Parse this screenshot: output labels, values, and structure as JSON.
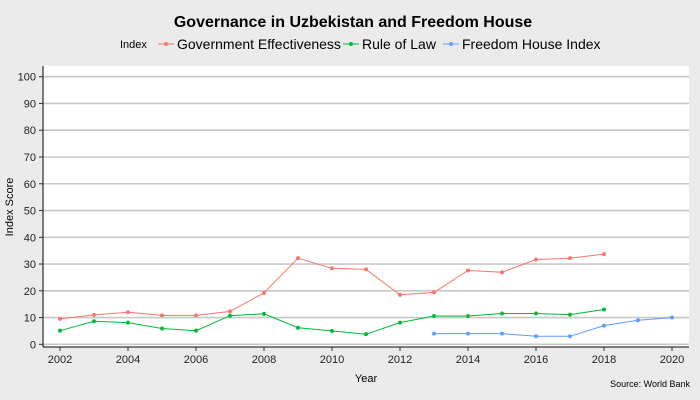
{
  "chart_data": {
    "type": "line",
    "title": "Governance in Uzbekistan and Freedom House",
    "legend_title": "Index",
    "legend_position": "top",
    "xlabel": "Year",
    "ylabel": "Index Score",
    "caption": "Source: World Bank",
    "xlim": [
      2001.5,
      2020.5
    ],
    "ylim": [
      -1,
      104
    ],
    "x_ticks": [
      2002,
      2004,
      2006,
      2008,
      2010,
      2012,
      2014,
      2016,
      2018,
      2020
    ],
    "y_ticks": [
      0,
      10,
      20,
      30,
      40,
      50,
      60,
      70,
      80,
      90,
      100
    ],
    "grid": true,
    "series": [
      {
        "name": "Government Effectiveness",
        "color": "#f8766d",
        "x": [
          2002,
          2003,
          2004,
          2005,
          2006,
          2007,
          2008,
          2009,
          2010,
          2011,
          2012,
          2013,
          2014,
          2015,
          2016,
          2017,
          2018
        ],
        "y": [
          9.5,
          11,
          12,
          10.8,
          10.8,
          12.3,
          19.2,
          32.2,
          28.4,
          28,
          18.5,
          19.4,
          27.6,
          26.9,
          31.7,
          32.2,
          33.7
        ]
      },
      {
        "name": "Rule of Law",
        "color": "#00ba38",
        "x": [
          2002,
          2003,
          2004,
          2005,
          2006,
          2007,
          2008,
          2009,
          2010,
          2011,
          2012,
          2013,
          2014,
          2015,
          2016,
          2017,
          2018
        ],
        "y": [
          5.1,
          8.6,
          8.1,
          5.9,
          5.1,
          10.7,
          11.4,
          6.2,
          5.0,
          3.8,
          8.1,
          10.6,
          10.6,
          11.5,
          11.5,
          11.1,
          13.0
        ]
      },
      {
        "name": "Freedom House Index",
        "color": "#619cff",
        "x": [
          2013,
          2014,
          2015,
          2016,
          2017,
          2018,
          2019,
          2020
        ],
        "y": [
          4,
          4,
          4,
          3,
          3,
          7,
          9,
          10
        ]
      }
    ]
  }
}
